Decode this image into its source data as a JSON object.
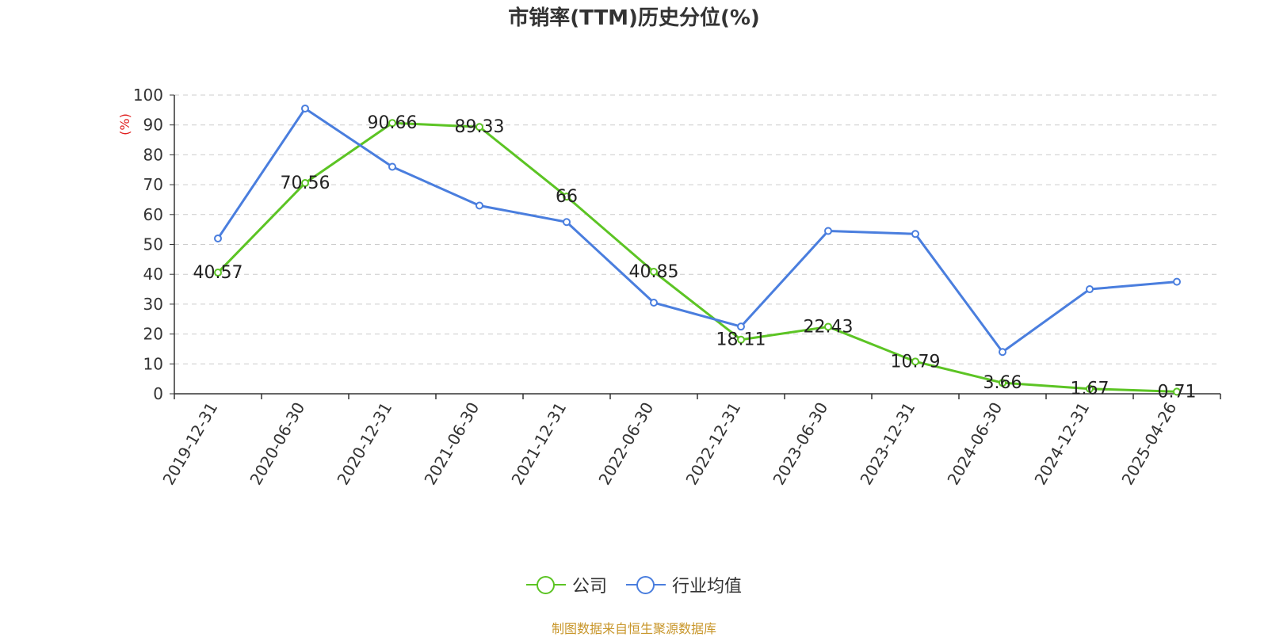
{
  "title": "市销率(TTM)历史分位(%)",
  "source": "制图数据来自恒生聚源数据库",
  "colors": {
    "company": "#5cc424",
    "industry": "#4a7ede",
    "ylabel": "#e02020",
    "source": "#c8962a"
  },
  "chart_data": {
    "type": "line",
    "title": "市销率(TTM)历史分位(%)",
    "ylabel": "(%)",
    "xlabel": "",
    "ylim": [
      0,
      100
    ],
    "yticks": [
      0,
      10,
      20,
      30,
      40,
      50,
      60,
      70,
      80,
      90,
      100
    ],
    "grid": true,
    "legend_position": "bottom",
    "categories": [
      "2019-12-31",
      "2020-06-30",
      "2020-12-31",
      "2021-06-30",
      "2021-12-31",
      "2022-06-30",
      "2022-12-31",
      "2023-06-30",
      "2023-12-31",
      "2024-06-30",
      "2024-12-31",
      "2025-04-26"
    ],
    "series": [
      {
        "name": "公司",
        "values": [
          40.57,
          70.56,
          90.66,
          89.33,
          66,
          40.85,
          18.11,
          22.43,
          10.79,
          3.66,
          1.67,
          0.71
        ],
        "labels": [
          "40.57",
          "70.56",
          "90.66",
          "89.33",
          "66",
          "40.85",
          "18.11",
          "22.43",
          "10.79",
          "3.66",
          "1.67",
          "0.71"
        ]
      },
      {
        "name": "行业均值",
        "values": [
          52,
          95.5,
          76,
          63,
          57.5,
          30.5,
          22.5,
          54.5,
          53.5,
          14,
          35,
          37.5
        ]
      }
    ]
  }
}
